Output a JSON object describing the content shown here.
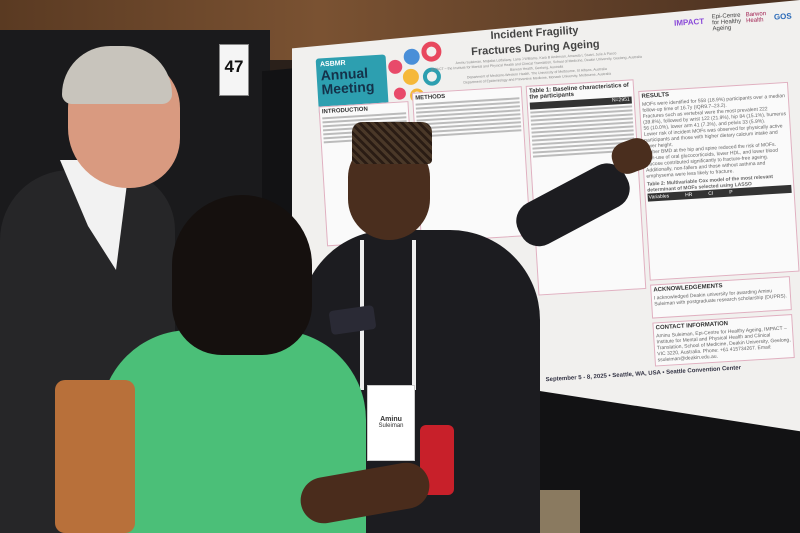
{
  "board_number": "47",
  "poster": {
    "conference_logo": {
      "org": "ASBMR",
      "line1": "Annual",
      "line2": "Meeting",
      "year": "2025"
    },
    "title_line1": "Identifying Factors for Remaining Free from Incident Fragility",
    "title_line2": "Fractures During Ageing",
    "authors": "Aminu Suleiman, Mojtaba Lotfaliany, Lana J Williams, Kara B Anderson, Amanda L Stuart, Julie A Pasco",
    "affiliations": [
      "IMPACT – the Institute for Mental and Physical Health and Clinical Translation, School of Medicine, Deakin University, Geelong, Australia",
      "Barwon Health, Geelong, Australia",
      "Department of Medicine-Western Health, The University of Melbourne, St Albans, Australia",
      "Department of Epidemiology and Preventive Medicine, Monash University, Melbourne, Australia"
    ],
    "partner_logos": [
      "IMPACT",
      "Epi-Centre for Healthy Ageing",
      "Barwon Health",
      "GOS"
    ],
    "sections": {
      "introduction": "INTRODUCTION",
      "methods": "METHODS",
      "table1": "Table 1: Baseline characteristics of the participants",
      "table1_n": "N=2951",
      "results": "RESULTS",
      "results_points": [
        "MOFs were identified for 558 (18.9%) participants over a median follow-up time of 16.7y (IQR9.7–23.2).",
        "Fractures such as vertebral were the most prevalent 222 (39.8%), followed by wrist 122 (21.9%), hip 84 (15.1%), humerus 56 (10.0%), lower arm 41 (7.3%), and pelvis 33 (5.9%).",
        "Lower risk of incident MOFs was observed for physically active participants and those with higher dietary calcium intake and lower height.",
        "Higher BMD at the hip and spine reduced the risk of MOFs.",
        "Non-use of oral glucocorticoids, lower HDL, and lower blood glucose contributed significantly to fracture-free ageing.",
        "Additionally, non-fallers and those without asthma and emphysema were less likely to fracture."
      ],
      "table2": "Table 2: Multivariable Cox model of the most relevant determinant of MOFs selected using LASSO",
      "table2_headers": [
        "Variables",
        "HR",
        "CI",
        "P"
      ],
      "acknowledgements": "ACKNOWLEDGEMENTS",
      "acknowledgements_text": "I acknowledged Deakin university for awarding Aminu Suleiman with postgraduate research scholarship (DUPRS).",
      "contact": "CONTACT INFORMATION",
      "contact_text": "Aminu Suleiman, Epi-Centre for Healthy Ageing, IMPACT – Institute for Mental and Physical Health and Clinical Translation, School of Medicine, Deakin University, Geelong, VIC 3220, Australia. Phone: +61 415734267. Email: ssuleiman@deakin.edu.au."
    },
    "footer": "September 5 - 8, 2025 • Seattle, WA, USA • Seattle Convention Center"
  },
  "name_badge": {
    "name": "Aminu",
    "surname": "Suleiman"
  },
  "colors": {
    "poster_teal": "#2d9fb0",
    "shirt_green": "#4bbf78",
    "background_wall": "#6a4628",
    "board": "#121214"
  }
}
